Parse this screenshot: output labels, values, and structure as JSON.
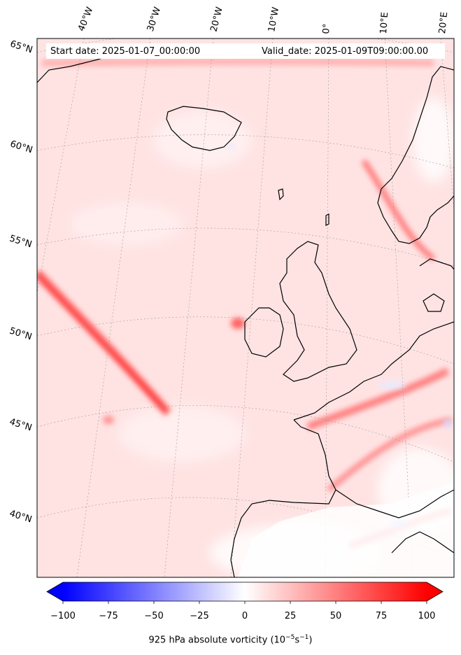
{
  "header": {
    "start_date": "Start date: 2025-01-07_00:00:00",
    "valid_date": "Valid_date: 2025-01-09T09:00:00.00"
  },
  "longitude_labels": [
    "40°W",
    "30°W",
    "20°W",
    "10°W",
    "0°",
    "10°E",
    "20°E"
  ],
  "latitude_labels": [
    "65°N",
    "60°N",
    "55°N",
    "50°N",
    "45°N",
    "40°N"
  ],
  "colorbar": {
    "ticks": [
      "−100",
      "−75",
      "−50",
      "−25",
      "0",
      "25",
      "50",
      "75",
      "100"
    ],
    "label": "925 hPa absolute vorticity (10",
    "label_exp": "−5",
    "label_mid": "s",
    "label_exp2": "−1",
    "label_end": ")",
    "min": -100,
    "max": 100,
    "extend": "both",
    "cmap": "bwr",
    "low_color": "#0000ff",
    "mid_color": "#ffffff",
    "high_color": "#ff0000"
  },
  "map": {
    "coastline_color": "#000000",
    "gridline_style": "dotted gray",
    "field_background_color": "#ffe6e6"
  }
}
